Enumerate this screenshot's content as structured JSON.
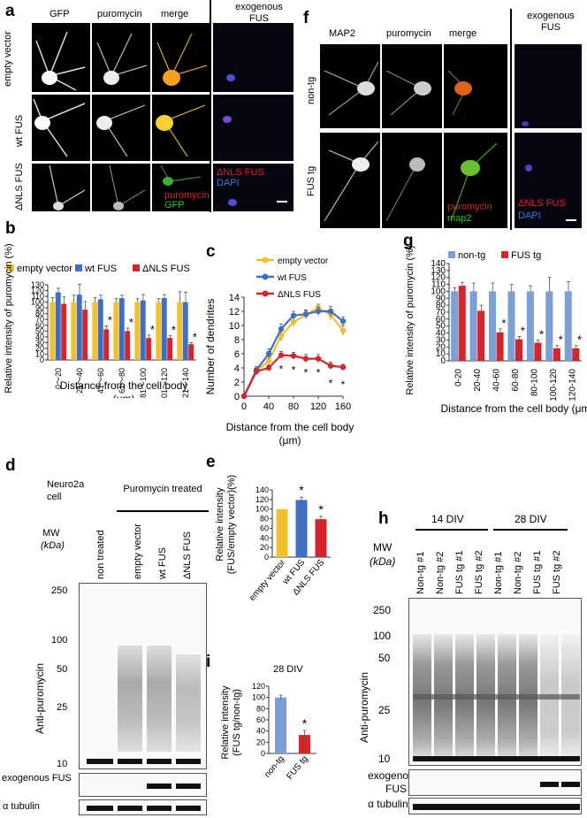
{
  "panels": {
    "a": {
      "label": "a",
      "columns": [
        "GFP",
        "puromycin",
        "merge"
      ],
      "exo_header": "exogenous FUS",
      "rows": [
        "empty vector",
        "wt FUS",
        "ΔNLS FUS"
      ],
      "overlay_red": "ΔNLS FUS",
      "overlay_blue": "DAPI",
      "overlay_puro": "puromycin",
      "overlay_gfp": "GFP"
    },
    "f": {
      "label": "f",
      "columns": [
        "MAP2",
        "puromycin",
        "merge"
      ],
      "exo_header": "exogenous FUS",
      "rows": [
        "non-tg",
        "FUS tg"
      ],
      "overlay_puro": "puromycin",
      "overlay_map2": "map2",
      "overlay_red": "ΔNLS FUS",
      "overlay_blue": "DAPI"
    },
    "b": {
      "label": "b"
    },
    "c": {
      "label": "c"
    },
    "e": {
      "label": "e"
    },
    "g": {
      "label": "g"
    },
    "i": {
      "label": "i"
    },
    "d": {
      "label": "d"
    },
    "h": {
      "label": "h"
    },
    "d_blot": {
      "cell": "Neuro2a cell",
      "treated": "Puromycin treated",
      "lanes": [
        "non treated",
        "empty vector",
        "wt FUS",
        "ΔNLS FUS"
      ],
      "mw": "MW",
      "kda": "(kDa)",
      "markers": [
        "250",
        "100",
        "50",
        "25",
        "10"
      ],
      "ylabel": "Anti-puromycin",
      "exo": "exogenous FUS",
      "tub": "α tubulin"
    },
    "h_blot": {
      "groups": [
        "14 DIV",
        "28 DIV"
      ],
      "lanes": [
        "Non-tg #1",
        "Non-tg #2",
        "FUS tg #1",
        "FUS tg #2",
        "Non-tg #1",
        "Non-tg #2",
        "FUS tg #1",
        "FUS tg #2"
      ],
      "mw": "MW",
      "kda": "(kDa)",
      "markers": [
        "250",
        "100",
        "50",
        "25",
        "10"
      ],
      "ylabel": "Anti-puromycin",
      "exo1": "exogenous",
      "exo2": "FUS",
      "tub": "α tubulin"
    }
  },
  "colors": {
    "empty": "#f2c02e",
    "wt": "#3f6fc4",
    "dnls": "#d2262c",
    "nontg": "#7c9fd6",
    "fustg": "#d2262c"
  },
  "chart_data": [
    {
      "id": "b",
      "type": "bar",
      "series": [
        {
          "name": "empty vector",
          "values": [
            100,
            100,
            100,
            100,
            100,
            100,
            100
          ]
        },
        {
          "name": "wt FUS",
          "values": [
            117,
            113,
            105,
            107,
            103,
            107,
            100
          ]
        },
        {
          "name": "ΔNLS FUS",
          "values": [
            97,
            87,
            53,
            50,
            38,
            38,
            27
          ]
        }
      ],
      "errors": [
        [
          8,
          12,
          8,
          6,
          6,
          6,
          18
        ],
        [
          7,
          18,
          7,
          5,
          10,
          6,
          17
        ],
        [
          12,
          14,
          6,
          5,
          5,
          4,
          3
        ]
      ],
      "categories": [
        "0～20",
        "21～40",
        "41～60",
        "61～80",
        "81～100",
        "101～120",
        "121～140"
      ],
      "yticks": [
        "0",
        "10",
        "20",
        "30",
        "40",
        "50",
        "60",
        "70",
        "80",
        "90",
        "100",
        "110",
        "120",
        "130"
      ],
      "ylim": [
        0,
        130
      ],
      "ylabel": "Relative intensity of puromycin (%)",
      "xlabel1": "Distance from the cell body",
      "xlabel2": "(μm)",
      "stars": [
        false,
        false,
        true,
        true,
        true,
        true,
        true
      ],
      "star": "*"
    },
    {
      "id": "c",
      "type": "line",
      "x": [
        0,
        20,
        40,
        60,
        80,
        100,
        120,
        140,
        160
      ],
      "series": [
        {
          "name": "empty vector",
          "values": [
            0,
            3.5,
            5.0,
            8.5,
            10.5,
            11.5,
            12.5,
            11.5,
            9.3
          ]
        },
        {
          "name": "wt FUS",
          "values": [
            0,
            3.7,
            6.0,
            9.5,
            11.4,
            11.6,
            12.0,
            12.0,
            10.6
          ]
        },
        {
          "name": "ΔNLS FUS",
          "values": [
            0,
            3.5,
            4.0,
            5.8,
            5.7,
            5.3,
            5.3,
            4.3,
            4.1
          ]
        }
      ],
      "errors": [
        [
          0,
          0.5,
          0.6,
          0.7,
          0.6,
          0.6,
          0.5,
          0.7,
          0.7
        ],
        [
          0,
          0.5,
          0.7,
          0.7,
          0.6,
          0.6,
          0.6,
          0.7,
          0.6
        ],
        [
          0,
          0.4,
          0.4,
          0.5,
          0.5,
          0.6,
          0.6,
          0.5,
          0.4
        ]
      ],
      "xticks": [
        "0",
        "40",
        "80",
        "120",
        "160"
      ],
      "yticks": [
        "0",
        "2",
        "4",
        "6",
        "8",
        "10",
        "12",
        "14"
      ],
      "ylim": [
        0,
        14
      ],
      "xlim": [
        0,
        160
      ],
      "ylabel": "Number of dendrites",
      "xlabel1": "Distance from the cell body",
      "xlabel2": "(μm)",
      "stars": [
        false,
        false,
        false,
        true,
        true,
        true,
        true,
        true,
        true
      ],
      "star": "*"
    },
    {
      "id": "e",
      "type": "bar",
      "categories": [
        "empty vector",
        "wt FUS",
        "ΔNLS FUS"
      ],
      "values": [
        100,
        119,
        79
      ],
      "errors": [
        0,
        6,
        6
      ],
      "yticks": [
        "0",
        "20",
        "40",
        "60",
        "80",
        "100",
        "120",
        "140"
      ],
      "ylim": [
        0,
        140
      ],
      "ylabel1": "Relative intensity",
      "ylabel2": "(FUS/empty vector)(%)",
      "stars": [
        false,
        true,
        true
      ],
      "star": "*"
    },
    {
      "id": "g",
      "type": "bar",
      "series": [
        {
          "name": "non-tg",
          "values": [
            100,
            100,
            100,
            100,
            100,
            100,
            100
          ]
        },
        {
          "name": "FUS tg",
          "values": [
            108,
            72,
            41,
            31,
            26,
            18,
            18
          ]
        }
      ],
      "errors": [
        [
          5,
          12,
          12,
          10,
          8,
          20,
          14
        ],
        [
          5,
          8,
          5,
          4,
          4,
          4,
          4
        ]
      ],
      "categories": [
        "0-20",
        "20-40",
        "40-60",
        "60-80",
        "80-100",
        "100-120",
        "120-140"
      ],
      "yticks": [
        "0",
        "10",
        "20",
        "30",
        "40",
        "50",
        "60",
        "70",
        "80",
        "90",
        "100",
        "110",
        "120",
        "130",
        "140"
      ],
      "ylim": [
        0,
        140
      ],
      "ylabel": "Relative intensity of puromycin (%)",
      "xlabel": "Distance from the cell body (μm)",
      "stars": [
        false,
        false,
        true,
        true,
        true,
        true,
        true
      ],
      "star": "*"
    },
    {
      "id": "i",
      "type": "bar",
      "title": "28 DIV",
      "categories": [
        "non-tg",
        "FUS tg"
      ],
      "values": [
        100,
        33
      ],
      "errors": [
        4,
        8
      ],
      "yticks": [
        "0",
        "20",
        "40",
        "60",
        "80",
        "100",
        "120"
      ],
      "ylim": [
        0,
        120
      ],
      "ylabel1": "Relative intensity",
      "ylabel2": "(FUS tg/non-tg)",
      "stars": [
        false,
        true
      ],
      "star": "*"
    }
  ]
}
